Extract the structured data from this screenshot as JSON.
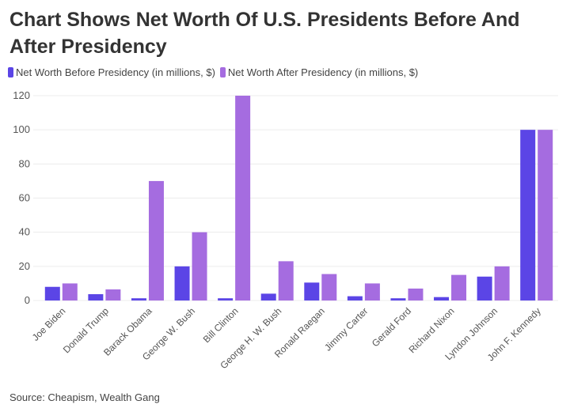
{
  "chart_data": {
    "type": "bar",
    "title": "Chart Shows Net Worth Of U.S. Presidents Before And After Presidency",
    "categories": [
      "Joe Biden",
      "Donald Trump",
      "Barack Obama",
      "George W. Bush",
      "Bill Clinton",
      "George H. W. Bush",
      "Ronald Raegan",
      "Jimmy Carter",
      "Gerald Ford",
      "Richard Nixon",
      "Lyndon Johnson",
      "John F. Kennedy"
    ],
    "series": [
      {
        "name": "Net Worth Before Presidency (in millions, $)",
        "color": "#5b45e6",
        "values": [
          8,
          3.7,
          1.3,
          20,
          1.3,
          4,
          10.5,
          2.5,
          1.3,
          2,
          14,
          100
        ]
      },
      {
        "name": "Net Worth After Presidency (in millions, $)",
        "color": "#a56ce0",
        "values": [
          10,
          6.5,
          70,
          40,
          120,
          23,
          15.5,
          10,
          7,
          15,
          20,
          100
        ]
      }
    ],
    "ylim": [
      0,
      120
    ],
    "yticks": [
      "0",
      "20",
      "40",
      "60",
      "80",
      "100",
      "120"
    ],
    "grid": true,
    "legend": "top-left",
    "source": "Source: Cheapism, Wealth Gang"
  }
}
